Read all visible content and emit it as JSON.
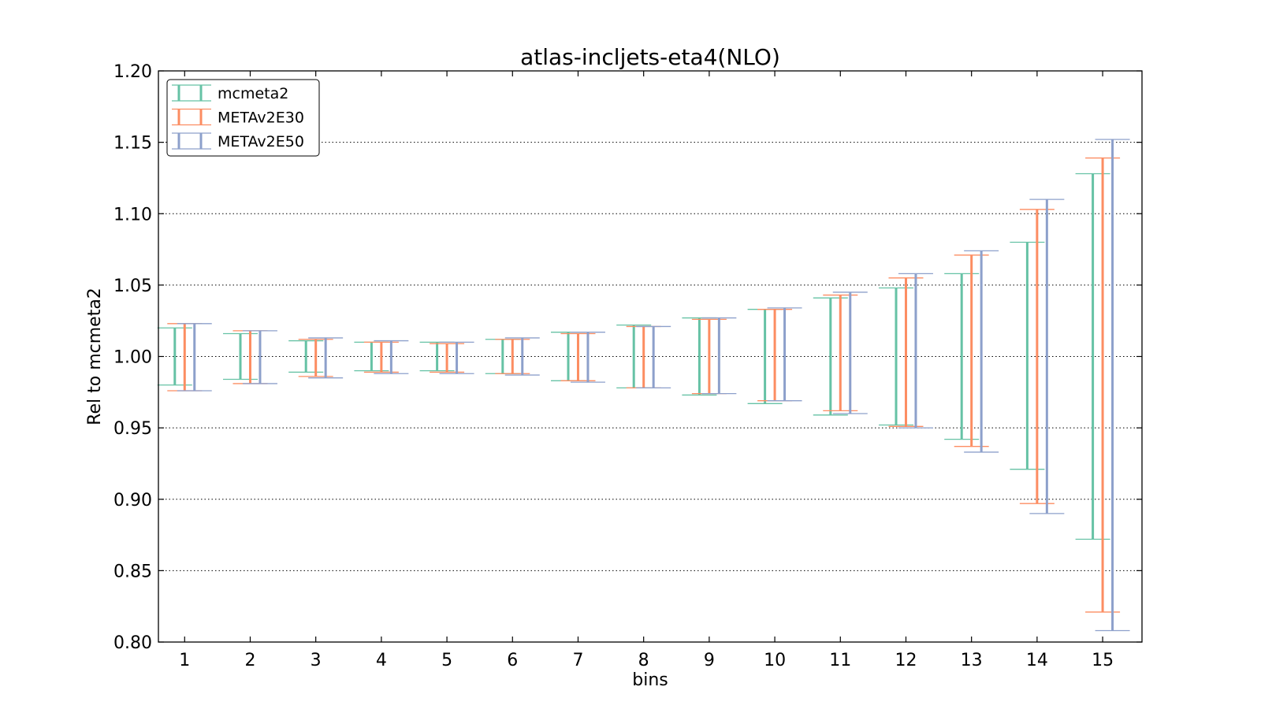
{
  "chart_data": {
    "type": "errorbar",
    "title": "atlas-incljets-eta4(NLO)",
    "xlabel": "bins",
    "ylabel": "Rel to mcmeta2",
    "xlim": [
      0.6,
      15.6
    ],
    "ylim": [
      0.8,
      1.2
    ],
    "x_ticks": [
      "1",
      "2",
      "3",
      "4",
      "5",
      "6",
      "7",
      "8",
      "9",
      "10",
      "11",
      "12",
      "13",
      "14",
      "15"
    ],
    "y_ticks": [
      "0.80",
      "0.85",
      "0.90",
      "0.95",
      "1.00",
      "1.05",
      "1.10",
      "1.15",
      "1.20"
    ],
    "y_tick_values": [
      0.8,
      0.85,
      0.9,
      0.95,
      1.0,
      1.05,
      1.1,
      1.15,
      1.2
    ],
    "grid": "horizontal dotted",
    "legend_position": "top-left",
    "series": [
      {
        "name": "mcmeta2",
        "color": "#66c2a5",
        "offset": -0.15,
        "bins": [
          1,
          2,
          3,
          4,
          5,
          6,
          7,
          8,
          9,
          10,
          11,
          12,
          13,
          14,
          15
        ],
        "lower": [
          0.98,
          0.984,
          0.989,
          0.99,
          0.99,
          0.988,
          0.983,
          0.978,
          0.973,
          0.967,
          0.959,
          0.952,
          0.942,
          0.921,
          0.872
        ],
        "upper": [
          1.02,
          1.016,
          1.011,
          1.01,
          1.01,
          1.012,
          1.017,
          1.022,
          1.027,
          1.033,
          1.041,
          1.048,
          1.058,
          1.08,
          1.128
        ]
      },
      {
        "name": "METAv2E30",
        "color": "#fc8d62",
        "offset": 0.0,
        "bins": [
          1,
          2,
          3,
          4,
          5,
          6,
          7,
          8,
          9,
          10,
          11,
          12,
          13,
          14,
          15
        ],
        "lower": [
          0.976,
          0.981,
          0.986,
          0.989,
          0.989,
          0.988,
          0.983,
          0.978,
          0.974,
          0.969,
          0.962,
          0.951,
          0.937,
          0.897,
          0.821
        ],
        "upper": [
          1.023,
          1.018,
          1.012,
          1.01,
          1.009,
          1.012,
          1.016,
          1.021,
          1.026,
          1.033,
          1.043,
          1.055,
          1.071,
          1.103,
          1.139
        ]
      },
      {
        "name": "METAv2E50",
        "color": "#8da0cb",
        "offset": 0.15,
        "bins": [
          1,
          2,
          3,
          4,
          5,
          6,
          7,
          8,
          9,
          10,
          11,
          12,
          13,
          14,
          15
        ],
        "lower": [
          0.976,
          0.981,
          0.985,
          0.988,
          0.988,
          0.987,
          0.982,
          0.978,
          0.974,
          0.969,
          0.96,
          0.95,
          0.933,
          0.89,
          0.808
        ],
        "upper": [
          1.023,
          1.018,
          1.013,
          1.011,
          1.01,
          1.013,
          1.017,
          1.021,
          1.027,
          1.034,
          1.045,
          1.058,
          1.074,
          1.11,
          1.152
        ]
      }
    ]
  }
}
